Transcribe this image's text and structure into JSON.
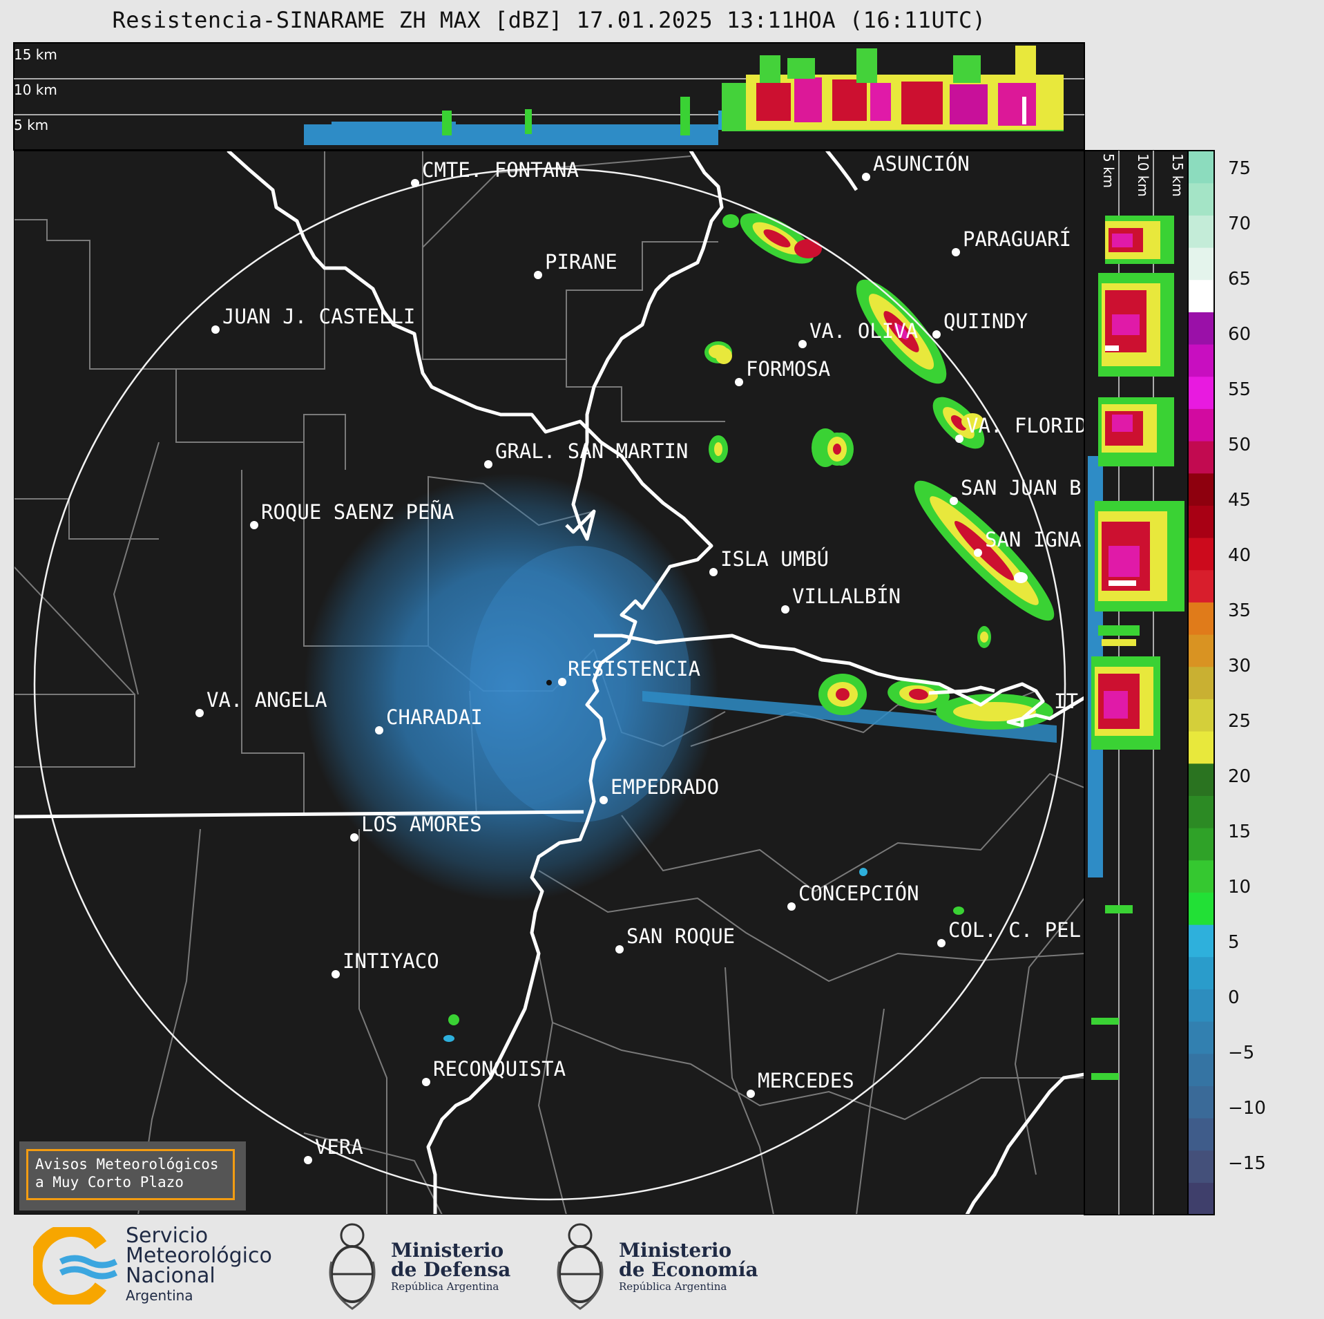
{
  "title": "Resistencia-SINARAME ZH MAX [dBZ] 17.01.2025 13:11HOA (16:11UTC)",
  "top_panel_labels": [
    "15 km",
    "10 km",
    "5 km"
  ],
  "side_panel_labels": [
    "5 km",
    "10 km",
    "15 km"
  ],
  "colorbar": {
    "ticks": [
      "75",
      "70",
      "65",
      "60",
      "55",
      "50",
      "45",
      "40",
      "35",
      "30",
      "25",
      "20",
      "15",
      "10",
      "5",
      "0",
      "−5",
      "−10",
      "−15"
    ],
    "colors": [
      "#3f3f6b",
      "#44507a",
      "#3f5c8a",
      "#3a6a98",
      "#3574a3",
      "#3280b0",
      "#2d8dbe",
      "#2a9ccb",
      "#2eb0dc",
      "#22e036",
      "#35c830",
      "#2fa228",
      "#2c8a24",
      "#2a7320",
      "#e8e83c",
      "#d4cf3a",
      "#c9b032",
      "#d99322",
      "#e07b1a",
      "#d81e2c",
      "#cc0a1c",
      "#a80014",
      "#8e000e",
      "#c20a50",
      "#d20aa0",
      "#e81ae0",
      "#c80ec0",
      "#9a10a8",
      "#ffffff",
      "#e4f4ec",
      "#c4ecd8",
      "#a4e4c6",
      "#8cdcbe"
    ]
  },
  "radar": {
    "name": "RESISTENCIA"
  },
  "places": [
    {
      "name": "CMTE. FONTANA"
    },
    {
      "name": "PIRANE"
    },
    {
      "name": "JUAN J. CASTELLI"
    },
    {
      "name": "ASUNCIÓN"
    },
    {
      "name": "PARAGUARÍ"
    },
    {
      "name": "QUIINDY"
    },
    {
      "name": "VA. OLIVA"
    },
    {
      "name": "FORMOSA"
    },
    {
      "name": "VA. FLORIDA"
    },
    {
      "name": "GRAL. SAN MARTIN"
    },
    {
      "name": "ROQUE SAENZ PEÑA"
    },
    {
      "name": "SAN JUAN B"
    },
    {
      "name": "SAN IGNA"
    },
    {
      "name": "ISLA UMBÚ"
    },
    {
      "name": "VILLALBÍN"
    },
    {
      "name": "RESISTENCIA"
    },
    {
      "name": "VA. ANGELA"
    },
    {
      "name": "CHARADAI"
    },
    {
      "name": "IT"
    },
    {
      "name": "EMPEDRADO"
    },
    {
      "name": "LOS AMORES"
    },
    {
      "name": "CONCEPCIÓN"
    },
    {
      "name": "COL. C. PEL"
    },
    {
      "name": "SAN ROQUE"
    },
    {
      "name": "INTIYACO"
    },
    {
      "name": "RECONQUISTA"
    },
    {
      "name": "MERCEDES"
    },
    {
      "name": "VERA"
    }
  ],
  "warning": {
    "line1": "Avisos Meteorológicos",
    "line2": "a Muy Corto Plazo"
  },
  "logos": {
    "smn": {
      "line1": "Servicio",
      "line2": "Meteorológico",
      "line3": "Nacional",
      "line4": "Argentina"
    },
    "defensa": {
      "line1": "Ministerio",
      "line2": "de Defensa",
      "sub": "República Argentina"
    },
    "economia": {
      "line1": "Ministerio",
      "line2": "de Economía",
      "sub": "República Argentina"
    }
  }
}
